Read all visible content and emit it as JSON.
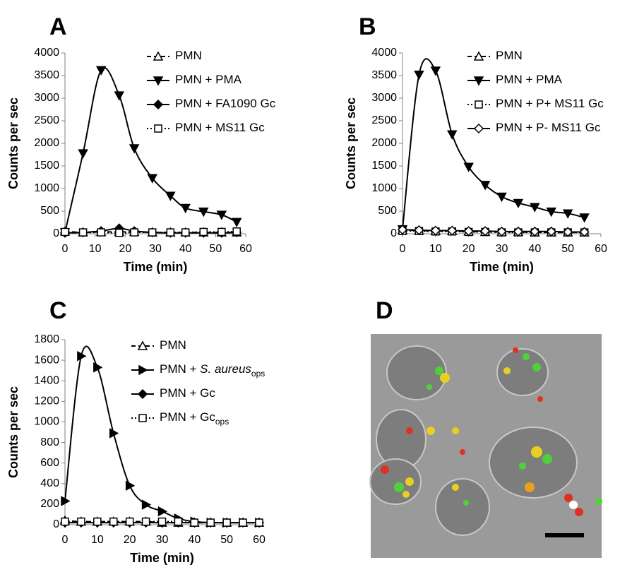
{
  "chart_data": [
    {
      "type": "line",
      "panel": "A",
      "x_label": "Time (min)",
      "y_label": "Counts per sec",
      "xlim": [
        0,
        60
      ],
      "xticks": [
        0,
        10,
        20,
        30,
        40,
        50,
        60
      ],
      "ylim": [
        0,
        4000
      ],
      "yticks": [
        0,
        500,
        1000,
        1500,
        2000,
        2500,
        3000,
        3500,
        4000
      ],
      "x": [
        0,
        6,
        12,
        18,
        23,
        29,
        35,
        40,
        46,
        52,
        57
      ],
      "series": [
        {
          "name": "PMN",
          "marker": "triangle-up-open",
          "dash": "dashed",
          "color": "#000000",
          "values": [
            50,
            30,
            40,
            40,
            40,
            30,
            30,
            30,
            30,
            30,
            30
          ]
        },
        {
          "name": "PMN + PMA",
          "marker": "triangle-down",
          "dash": "solid",
          "color": "#000000",
          "values": [
            30,
            1780,
            3620,
            3060,
            1890,
            1230,
            840,
            570,
            490,
            420,
            260
          ]
        },
        {
          "name": "PMN + FA1090 Gc",
          "marker": "diamond",
          "dash": "solid",
          "color": "#000000",
          "values": [
            20,
            30,
            60,
            120,
            60,
            30,
            20,
            20,
            20,
            20,
            30
          ]
        },
        {
          "name": "PMN + MS11 Gc",
          "marker": "square-open",
          "dash": "dotted",
          "color": "#000000",
          "values": [
            40,
            30,
            30,
            20,
            30,
            30,
            30,
            30,
            40,
            40,
            50
          ]
        }
      ]
    },
    {
      "type": "line",
      "panel": "B",
      "x_label": "Time (min)",
      "y_label": "Counts per sec",
      "xlim": [
        0,
        60
      ],
      "xticks": [
        0,
        10,
        20,
        30,
        40,
        50,
        60
      ],
      "ylim": [
        0,
        4000
      ],
      "yticks": [
        0,
        500,
        1000,
        1500,
        2000,
        2500,
        3000,
        3500,
        4000
      ],
      "x": [
        0,
        5,
        10,
        15,
        20,
        25,
        30,
        35,
        40,
        45,
        50,
        55
      ],
      "series": [
        {
          "name": "PMN",
          "marker": "triangle-up-open",
          "dash": "dashed",
          "color": "#000000",
          "values": [
            80,
            70,
            60,
            60,
            50,
            40,
            40,
            40,
            30,
            30,
            30,
            30
          ]
        },
        {
          "name": "PMN + PMA",
          "marker": "triangle-down",
          "dash": "solid",
          "color": "#000000",
          "values": [
            100,
            3520,
            3610,
            2200,
            1480,
            1080,
            820,
            680,
            590,
            490,
            450,
            360
          ]
        },
        {
          "name": "PMN + P+ MS11 Gc",
          "marker": "square-open",
          "dash": "dotted",
          "color": "#000000",
          "values": [
            60,
            60,
            50,
            50,
            40,
            40,
            30,
            30,
            30,
            30,
            30,
            30
          ]
        },
        {
          "name": "PMN + P- MS11 Gc",
          "marker": "diamond-open",
          "dash": "solid",
          "color": "#000000",
          "values": [
            90,
            80,
            70,
            70,
            60,
            60,
            50,
            50,
            50,
            50,
            40,
            40
          ]
        }
      ]
    },
    {
      "type": "line",
      "panel": "C",
      "x_label": "Time (min)",
      "y_label": "Counts per sec",
      "xlim": [
        0,
        60
      ],
      "xticks": [
        0,
        10,
        20,
        30,
        40,
        50,
        60
      ],
      "ylim": [
        0,
        1800
      ],
      "yticks": [
        0,
        200,
        400,
        600,
        800,
        1000,
        1200,
        1400,
        1600,
        1800
      ],
      "x": [
        0,
        5,
        10,
        15,
        20,
        25,
        30,
        35,
        40,
        45,
        50,
        55,
        60
      ],
      "series": [
        {
          "name": "PMN",
          "marker": "triangle-up-open",
          "dash": "dashed",
          "color": "#000000",
          "values": [
            40,
            30,
            30,
            30,
            30,
            30,
            20,
            20,
            20,
            20,
            20,
            20,
            20
          ]
        },
        {
          "name": "PMN + ",
          "italic": "S. aureus",
          "subscript": "ops",
          "marker": "triangle-right",
          "dash": "solid",
          "color": "#000000",
          "values": [
            230,
            1640,
            1530,
            890,
            380,
            195,
            130,
            60,
            30,
            20,
            20,
            20,
            20
          ]
        },
        {
          "name": "PMN + Gc",
          "marker": "diamond",
          "dash": "solid",
          "color": "#000000",
          "values": [
            20,
            20,
            20,
            20,
            20,
            20,
            20,
            20,
            20,
            20,
            20,
            20,
            20
          ]
        },
        {
          "name": "PMN + Gc",
          "subscript": "ops",
          "marker": "square-open",
          "dash": "dotted",
          "color": "#000000",
          "values": [
            30,
            30,
            30,
            30,
            30,
            30,
            30,
            30,
            20,
            20,
            20,
            20,
            20
          ]
        }
      ]
    }
  ],
  "image_panel": {
    "label": "D"
  }
}
